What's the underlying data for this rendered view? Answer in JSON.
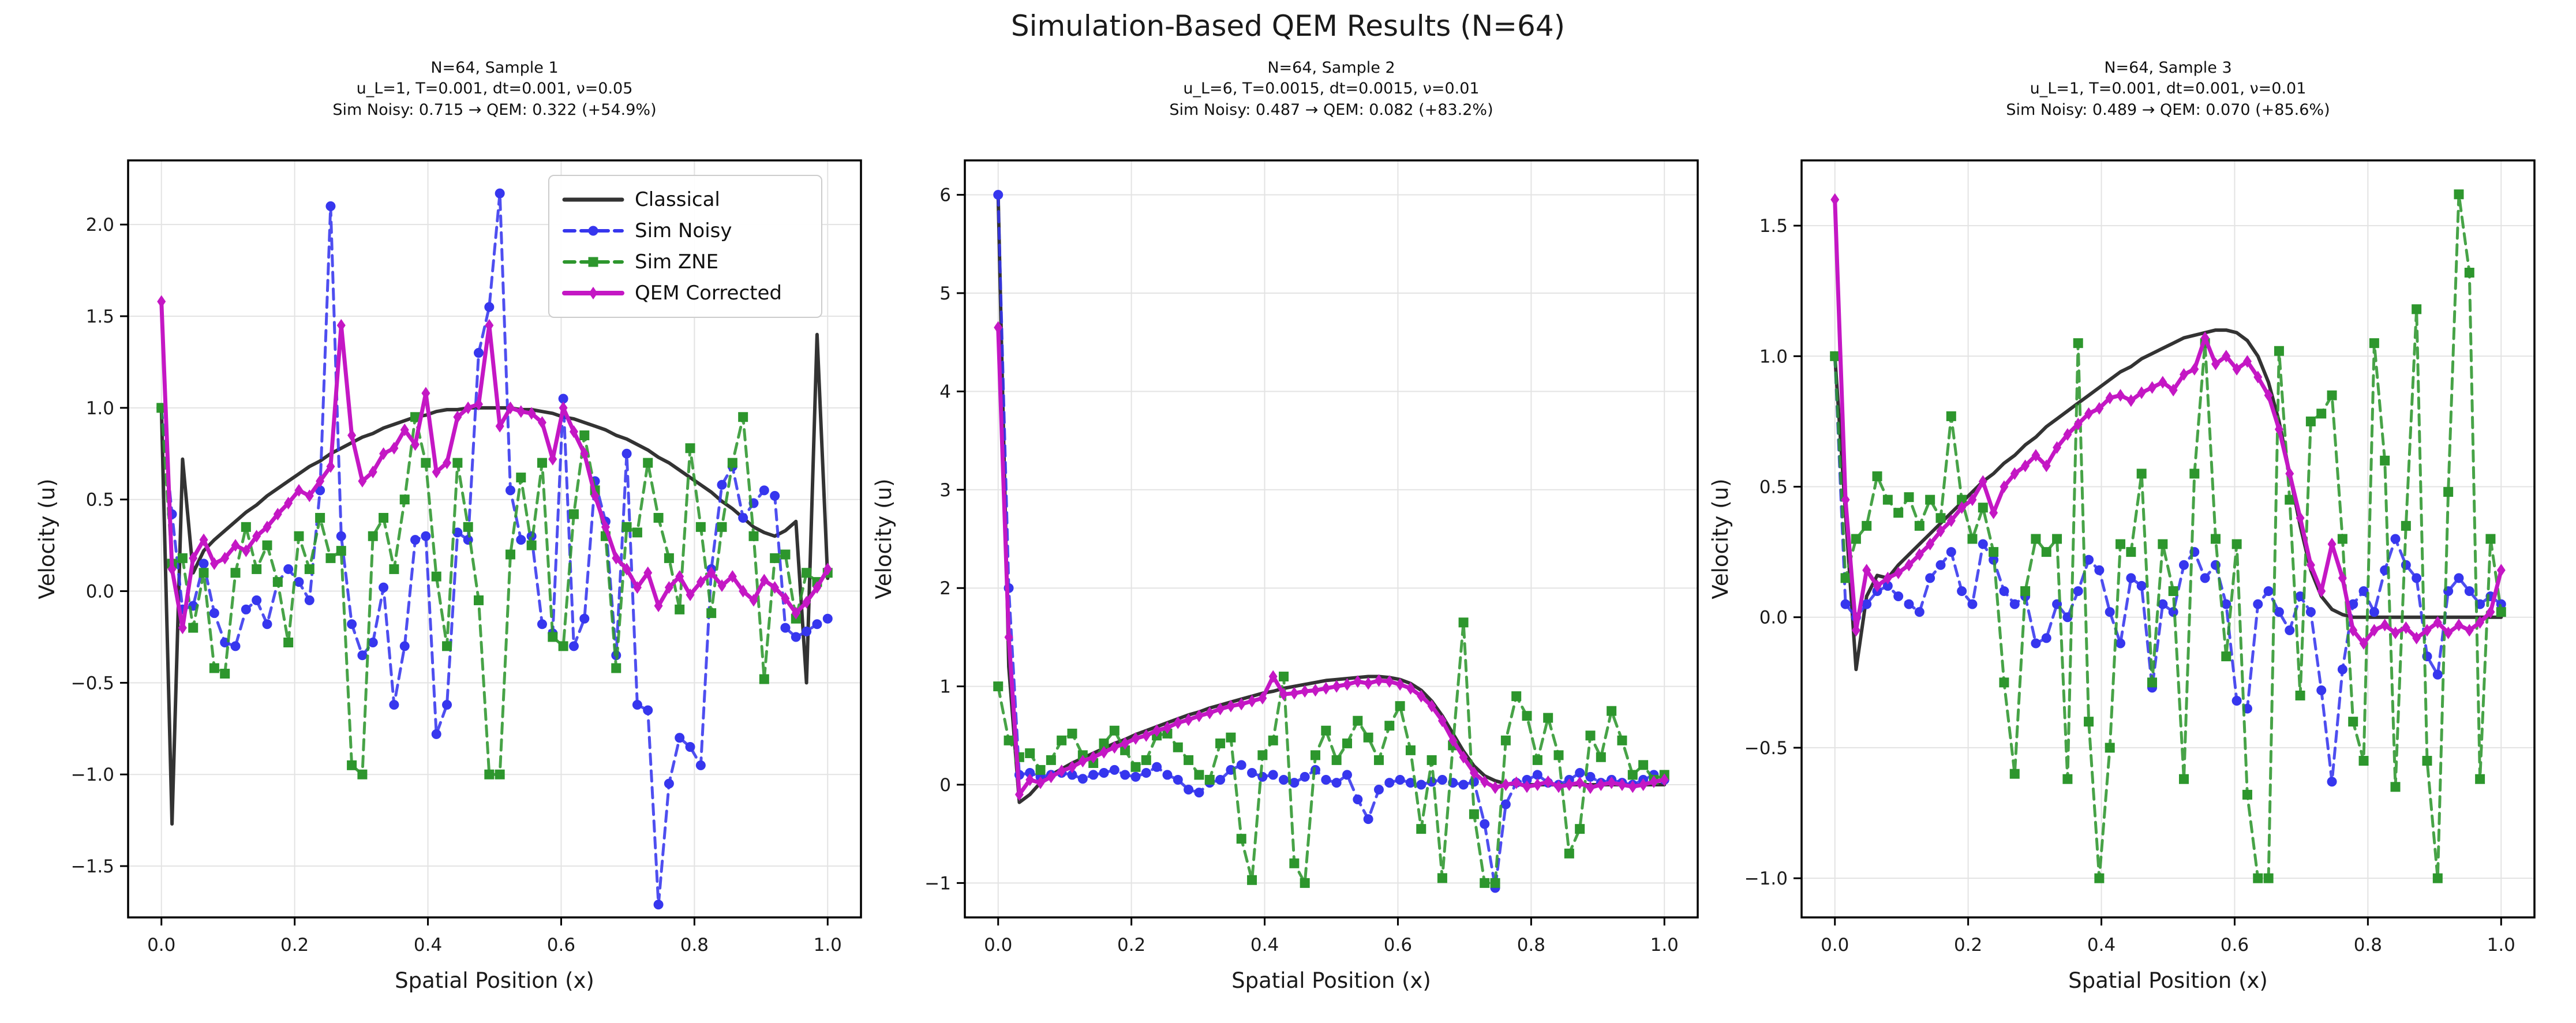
{
  "figure": {
    "suptitle": "Simulation-Based QEM Results (N=64)"
  },
  "colors": {
    "classical": "#333333",
    "noisy": "#3636ee",
    "zne": "#2d962d",
    "qem": "#c417c4",
    "grid": "#e3e3e3",
    "spine": "#000000",
    "text": "#1a1a1a"
  },
  "legend": {
    "position": "upper-right",
    "entries": [
      "Classical",
      "Sim Noisy",
      "Sim ZNE",
      "QEM Corrected"
    ]
  },
  "chart_data": [
    {
      "type": "line",
      "title_lines": [
        "N=64, Sample 1",
        "u_L=1, T=0.001, dt=0.001, ν=0.05",
        "Sim Noisy: 0.715 → QEM: 0.322 (+54.9%)"
      ],
      "xlabel": "Spatial Position (x)",
      "ylabel": "Velocity (u)",
      "xlim": [
        -0.05,
        1.05
      ],
      "ylim": [
        -1.78,
        2.35
      ],
      "xticks": {
        "values": [
          0.0,
          0.2,
          0.4,
          0.6,
          0.8,
          1.0
        ],
        "labels": [
          "0.0",
          "0.2",
          "0.4",
          "0.6",
          "0.8",
          "1.0"
        ]
      },
      "yticks": {
        "values": [
          -1.5,
          -1.0,
          -0.5,
          0.0,
          0.5,
          1.0,
          1.5,
          2.0
        ],
        "labels": [
          "−1.5",
          "−1.0",
          "−0.5",
          "0.0",
          "0.5",
          "1.0",
          "1.5",
          "2.0"
        ]
      },
      "grid": true,
      "x": {
        "start": 0,
        "end": 1,
        "count": 64
      },
      "series": [
        {
          "name": "Classical",
          "color": "#333333",
          "style": "solid",
          "marker": "none",
          "lw": 6,
          "values": [
            1.0,
            -1.27,
            0.72,
            0.1,
            0.22,
            0.28,
            0.33,
            0.38,
            0.43,
            0.47,
            0.52,
            0.56,
            0.6,
            0.64,
            0.68,
            0.71,
            0.75,
            0.78,
            0.81,
            0.84,
            0.86,
            0.89,
            0.91,
            0.93,
            0.95,
            0.96,
            0.98,
            0.99,
            0.99,
            1.0,
            1.0,
            1.0,
            1.0,
            1.0,
            0.99,
            0.99,
            0.98,
            0.97,
            0.95,
            0.94,
            0.92,
            0.9,
            0.88,
            0.85,
            0.83,
            0.8,
            0.77,
            0.73,
            0.7,
            0.66,
            0.62,
            0.58,
            0.54,
            0.49,
            0.45,
            0.4,
            0.35,
            0.32,
            0.3,
            0.33,
            0.38,
            -0.5,
            1.4,
            0.07
          ]
        },
        {
          "name": "Sim Noisy",
          "color": "#3636ee",
          "style": "dashed",
          "marker": "circle",
          "lw": 5,
          "values": [
            1.0,
            0.42,
            -0.1,
            -0.08,
            0.15,
            -0.12,
            -0.28,
            -0.3,
            -0.1,
            -0.05,
            -0.18,
            0.05,
            0.12,
            0.05,
            -0.05,
            0.55,
            2.1,
            0.3,
            -0.18,
            -0.35,
            -0.28,
            0.02,
            -0.62,
            -0.3,
            0.28,
            0.3,
            -0.78,
            -0.62,
            0.32,
            0.28,
            1.3,
            1.55,
            2.17,
            0.55,
            0.28,
            0.3,
            -0.18,
            -0.23,
            1.05,
            -0.3,
            -0.15,
            0.6,
            0.38,
            -0.35,
            0.75,
            -0.62,
            -0.65,
            -1.71,
            -1.05,
            -0.8,
            -0.85,
            -0.95,
            0.12,
            0.58,
            0.68,
            0.4,
            0.48,
            0.55,
            0.52,
            -0.2,
            -0.25,
            -0.22,
            -0.18,
            -0.15
          ]
        },
        {
          "name": "Sim ZNE",
          "color": "#2d962d",
          "style": "dashed",
          "marker": "square",
          "lw": 5,
          "values": [
            1.0,
            0.15,
            0.18,
            -0.2,
            0.1,
            -0.42,
            -0.45,
            0.1,
            0.35,
            0.12,
            0.25,
            0.05,
            -0.28,
            0.3,
            0.12,
            0.4,
            0.18,
            0.22,
            -0.95,
            -1.0,
            0.3,
            0.4,
            0.12,
            0.5,
            0.95,
            0.7,
            0.08,
            -0.3,
            0.7,
            0.35,
            -0.05,
            -1.0,
            -1.0,
            0.2,
            0.62,
            0.25,
            0.7,
            -0.25,
            -0.3,
            0.42,
            0.85,
            0.55,
            0.3,
            -0.42,
            0.35,
            0.32,
            0.7,
            0.4,
            0.18,
            -0.1,
            0.78,
            0.35,
            -0.12,
            0.35,
            0.7,
            0.95,
            0.3,
            -0.48,
            0.18,
            0.2,
            -0.15,
            0.1,
            0.05,
            0.1
          ]
        },
        {
          "name": "QEM Corrected",
          "color": "#c417c4",
          "style": "solid",
          "marker": "diamond",
          "lw": 7,
          "values": [
            1.58,
            0.12,
            -0.2,
            0.18,
            0.28,
            0.15,
            0.18,
            0.25,
            0.22,
            0.3,
            0.35,
            0.42,
            0.48,
            0.55,
            0.52,
            0.6,
            0.68,
            1.45,
            0.85,
            0.6,
            0.65,
            0.75,
            0.78,
            0.88,
            0.8,
            1.08,
            0.65,
            0.7,
            0.95,
            1.0,
            1.02,
            1.45,
            0.9,
            1.0,
            0.98,
            0.97,
            0.92,
            0.72,
            1.0,
            0.87,
            0.75,
            0.52,
            0.35,
            0.18,
            0.12,
            0.02,
            0.1,
            -0.08,
            0.02,
            0.08,
            -0.02,
            0.05,
            0.1,
            0.03,
            0.08,
            0.0,
            -0.05,
            0.06,
            0.02,
            -0.04,
            -0.12,
            -0.06,
            0.02,
            0.12
          ]
        }
      ]
    },
    {
      "type": "line",
      "title_lines": [
        "N=64, Sample 2",
        "u_L=6, T=0.0015, dt=0.0015, ν=0.01",
        "Sim Noisy: 0.487 → QEM: 0.082 (+83.2%)"
      ],
      "xlabel": "Spatial Position (x)",
      "ylabel": "Velocity (u)",
      "xlim": [
        -0.05,
        1.05
      ],
      "ylim": [
        -1.35,
        6.35
      ],
      "xticks": {
        "values": [
          0.0,
          0.2,
          0.4,
          0.6,
          0.8,
          1.0
        ],
        "labels": [
          "0.0",
          "0.2",
          "0.4",
          "0.6",
          "0.8",
          "1.0"
        ]
      },
      "yticks": {
        "values": [
          -1,
          0,
          1,
          2,
          3,
          4,
          5,
          6
        ],
        "labels": [
          "−1",
          "0",
          "1",
          "2",
          "3",
          "4",
          "5",
          "6"
        ]
      },
      "grid": true,
      "x": {
        "start": 0,
        "end": 1,
        "count": 64
      },
      "series": [
        {
          "name": "Classical",
          "color": "#333333",
          "style": "solid",
          "marker": "none",
          "lw": 6,
          "values": [
            6.0,
            1.2,
            -0.18,
            -0.1,
            0.02,
            0.1,
            0.16,
            0.22,
            0.27,
            0.32,
            0.37,
            0.42,
            0.46,
            0.51,
            0.55,
            0.59,
            0.63,
            0.67,
            0.71,
            0.74,
            0.78,
            0.81,
            0.84,
            0.87,
            0.9,
            0.93,
            0.95,
            0.98,
            1.0,
            1.02,
            1.04,
            1.06,
            1.07,
            1.08,
            1.09,
            1.1,
            1.1,
            1.09,
            1.07,
            1.03,
            0.96,
            0.85,
            0.7,
            0.52,
            0.34,
            0.19,
            0.09,
            0.04,
            0.01,
            0.0,
            0.0,
            0.0,
            0.0,
            0.0,
            0.0,
            0.0,
            0.0,
            0.0,
            0.0,
            0.0,
            0.0,
            0.0,
            0.0,
            0.0
          ]
        },
        {
          "name": "Sim Noisy",
          "color": "#3636ee",
          "style": "dashed",
          "marker": "circle",
          "lw": 5,
          "values": [
            6.0,
            2.0,
            0.1,
            0.12,
            0.08,
            0.1,
            0.12,
            0.1,
            0.06,
            0.1,
            0.12,
            0.15,
            0.1,
            0.08,
            0.12,
            0.18,
            0.1,
            0.05,
            -0.05,
            -0.08,
            0.02,
            0.05,
            0.15,
            0.2,
            0.12,
            0.08,
            0.1,
            0.05,
            0.02,
            0.08,
            0.15,
            0.05,
            0.02,
            0.1,
            -0.15,
            -0.35,
            -0.05,
            0.02,
            0.05,
            0.02,
            0.0,
            0.03,
            0.05,
            0.02,
            0.0,
            0.03,
            -0.4,
            -1.05,
            -0.2,
            0.02,
            0.05,
            0.1,
            0.02,
            0.0,
            0.05,
            0.12,
            0.08,
            0.02,
            0.05,
            0.02,
            0.0,
            0.05,
            0.1,
            0.05
          ]
        },
        {
          "name": "Sim ZNE",
          "color": "#2d962d",
          "style": "dashed",
          "marker": "square",
          "lw": 5,
          "values": [
            1.0,
            0.45,
            0.28,
            0.32,
            0.15,
            0.25,
            0.45,
            0.52,
            0.3,
            0.22,
            0.42,
            0.55,
            0.35,
            0.18,
            0.25,
            0.5,
            0.52,
            0.38,
            0.25,
            0.1,
            0.05,
            0.42,
            0.48,
            -0.55,
            -0.97,
            0.3,
            0.45,
            1.1,
            -0.8,
            -1.0,
            0.3,
            0.55,
            0.25,
            0.42,
            0.65,
            0.48,
            0.25,
            0.6,
            0.8,
            0.35,
            -0.45,
            0.25,
            -0.95,
            0.4,
            1.65,
            -0.3,
            -1.0,
            -1.0,
            0.45,
            0.9,
            0.7,
            0.25,
            0.68,
            0.3,
            -0.7,
            -0.45,
            0.5,
            0.28,
            0.75,
            0.45,
            0.1,
            0.2,
            0.05,
            0.1
          ]
        },
        {
          "name": "QEM Corrected",
          "color": "#c417c4",
          "style": "solid",
          "marker": "diamond",
          "lw": 7,
          "values": [
            4.65,
            1.5,
            -0.1,
            0.05,
            0.02,
            0.08,
            0.14,
            0.18,
            0.24,
            0.28,
            0.33,
            0.38,
            0.42,
            0.47,
            0.5,
            0.55,
            0.58,
            0.63,
            0.66,
            0.7,
            0.73,
            0.77,
            0.8,
            0.82,
            0.85,
            0.88,
            1.1,
            0.92,
            0.93,
            0.95,
            0.96,
            0.98,
            1.0,
            1.02,
            1.05,
            1.03,
            1.06,
            1.05,
            1.02,
            0.98,
            0.9,
            0.8,
            0.65,
            0.45,
            0.28,
            0.12,
            0.03,
            -0.03,
            0.0,
            0.02,
            -0.02,
            0.0,
            0.03,
            -0.02,
            0.0,
            0.02,
            -0.03,
            0.0,
            0.02,
            0.0,
            -0.02,
            0.0,
            0.03,
            0.05
          ]
        }
      ]
    },
    {
      "type": "line",
      "title_lines": [
        "N=64, Sample 3",
        "u_L=1, T=0.001, dt=0.001, ν=0.01",
        "Sim Noisy: 0.489 → QEM: 0.070 (+85.6%)"
      ],
      "xlabel": "Spatial Position (x)",
      "ylabel": "Velocity (u)",
      "xlim": [
        -0.05,
        1.05
      ],
      "ylim": [
        -1.15,
        1.75
      ],
      "xticks": {
        "values": [
          0.0,
          0.2,
          0.4,
          0.6,
          0.8,
          1.0
        ],
        "labels": [
          "0.0",
          "0.2",
          "0.4",
          "0.6",
          "0.8",
          "1.0"
        ]
      },
      "yticks": {
        "values": [
          -1.0,
          -0.5,
          0.0,
          0.5,
          1.0,
          1.5
        ],
        "labels": [
          "−1.0",
          "−0.5",
          "0.0",
          "0.5",
          "1.0",
          "1.5"
        ]
      },
      "grid": true,
      "x": {
        "start": 0,
        "end": 1,
        "count": 64
      },
      "series": [
        {
          "name": "Classical",
          "color": "#333333",
          "style": "solid",
          "marker": "none",
          "lw": 6,
          "values": [
            1.0,
            0.4,
            -0.2,
            0.08,
            0.16,
            0.15,
            0.2,
            0.24,
            0.28,
            0.32,
            0.36,
            0.4,
            0.44,
            0.48,
            0.52,
            0.55,
            0.59,
            0.62,
            0.66,
            0.69,
            0.73,
            0.76,
            0.79,
            0.82,
            0.85,
            0.88,
            0.91,
            0.94,
            0.96,
            0.99,
            1.01,
            1.03,
            1.05,
            1.07,
            1.08,
            1.09,
            1.1,
            1.1,
            1.09,
            1.06,
            1.0,
            0.9,
            0.75,
            0.55,
            0.35,
            0.18,
            0.08,
            0.03,
            0.01,
            0.0,
            0.0,
            0.0,
            0.0,
            0.0,
            0.0,
            0.0,
            0.0,
            0.0,
            0.0,
            0.0,
            0.0,
            0.0,
            0.0,
            0.0
          ]
        },
        {
          "name": "Sim Noisy",
          "color": "#3636ee",
          "style": "dashed",
          "marker": "circle",
          "lw": 5,
          "values": [
            1.0,
            0.05,
            0.0,
            0.05,
            0.1,
            0.12,
            0.08,
            0.05,
            0.02,
            0.15,
            0.2,
            0.25,
            0.1,
            0.05,
            0.28,
            0.22,
            0.1,
            0.05,
            0.08,
            -0.1,
            -0.08,
            0.05,
            0.0,
            0.1,
            0.22,
            0.18,
            0.02,
            -0.1,
            0.15,
            0.12,
            -0.27,
            0.05,
            0.02,
            0.2,
            0.25,
            0.15,
            0.2,
            0.05,
            -0.32,
            -0.35,
            0.05,
            0.1,
            0.02,
            -0.05,
            0.08,
            0.02,
            -0.28,
            -0.63,
            -0.2,
            0.05,
            0.1,
            0.02,
            0.18,
            0.3,
            0.2,
            0.15,
            -0.15,
            -0.22,
            0.1,
            0.15,
            0.1,
            0.05,
            0.08,
            0.05
          ]
        },
        {
          "name": "Sim ZNE",
          "color": "#2d962d",
          "style": "dashed",
          "marker": "square",
          "lw": 5,
          "values": [
            1.0,
            0.15,
            0.3,
            0.35,
            0.54,
            0.45,
            0.4,
            0.46,
            0.35,
            0.45,
            0.38,
            0.77,
            0.45,
            0.3,
            0.42,
            0.25,
            -0.25,
            -0.6,
            0.1,
            0.3,
            0.25,
            0.3,
            -0.62,
            1.05,
            -0.4,
            -1.0,
            -0.5,
            0.28,
            0.25,
            0.55,
            -0.25,
            0.28,
            0.1,
            -0.62,
            0.55,
            1.05,
            0.3,
            -0.15,
            0.28,
            -0.68,
            -1.0,
            -1.0,
            1.02,
            0.45,
            -0.3,
            0.75,
            0.78,
            0.85,
            0.3,
            -0.4,
            -0.55,
            1.05,
            0.6,
            -0.65,
            0.35,
            1.18,
            -0.55,
            -1.0,
            0.48,
            1.62,
            1.32,
            -0.62,
            0.3,
            0.02
          ]
        },
        {
          "name": "QEM Corrected",
          "color": "#c417c4",
          "style": "solid",
          "marker": "diamond",
          "lw": 7,
          "values": [
            1.6,
            0.45,
            -0.05,
            0.18,
            0.12,
            0.15,
            0.17,
            0.2,
            0.24,
            0.28,
            0.33,
            0.37,
            0.42,
            0.45,
            0.52,
            0.4,
            0.5,
            0.55,
            0.58,
            0.62,
            0.58,
            0.65,
            0.7,
            0.74,
            0.78,
            0.8,
            0.84,
            0.85,
            0.83,
            0.86,
            0.88,
            0.9,
            0.87,
            0.93,
            0.95,
            1.07,
            0.97,
            1.0,
            0.95,
            0.98,
            0.92,
            0.85,
            0.72,
            0.55,
            0.38,
            0.2,
            0.1,
            0.28,
            0.15,
            -0.05,
            -0.1,
            -0.05,
            -0.03,
            -0.06,
            -0.04,
            -0.08,
            -0.05,
            -0.02,
            -0.06,
            -0.03,
            -0.05,
            -0.02,
            0.02,
            0.18
          ]
        }
      ]
    }
  ]
}
